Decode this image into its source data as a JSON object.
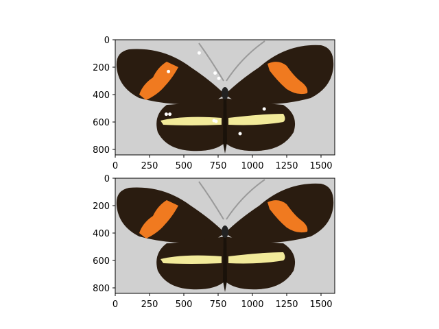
{
  "figure": {
    "panels": [
      {
        "name": "top-panel",
        "image": "butterfly-photo",
        "x_ticks": [
          "0",
          "250",
          "500",
          "750",
          "1000",
          "1250",
          "1500"
        ],
        "y_ticks": [
          "0",
          "200",
          "400",
          "600",
          "800"
        ],
        "markers": [
          {
            "x": 612,
            "y": 96
          },
          {
            "x": 388,
            "y": 232
          },
          {
            "x": 728,
            "y": 243
          },
          {
            "x": 755,
            "y": 282
          },
          {
            "x": 1086,
            "y": 505
          },
          {
            "x": 372,
            "y": 543
          },
          {
            "x": 398,
            "y": 543
          },
          {
            "x": 720,
            "y": 590
          },
          {
            "x": 735,
            "y": 595
          },
          {
            "x": 910,
            "y": 685
          }
        ]
      },
      {
        "name": "bottom-panel",
        "image": "butterfly-photo",
        "x_ticks": [
          "0",
          "250",
          "500",
          "750",
          "1000",
          "1250",
          "1500"
        ],
        "y_ticks": [
          "0",
          "200",
          "400",
          "600",
          "800"
        ],
        "markers": []
      }
    ],
    "colors": {
      "background": "#d0d0d0",
      "wing_dark": "#2a1c10",
      "wing_orange": "#f07a20",
      "band_yellow": "#f2ea9a",
      "marker": "#ffffff"
    }
  }
}
